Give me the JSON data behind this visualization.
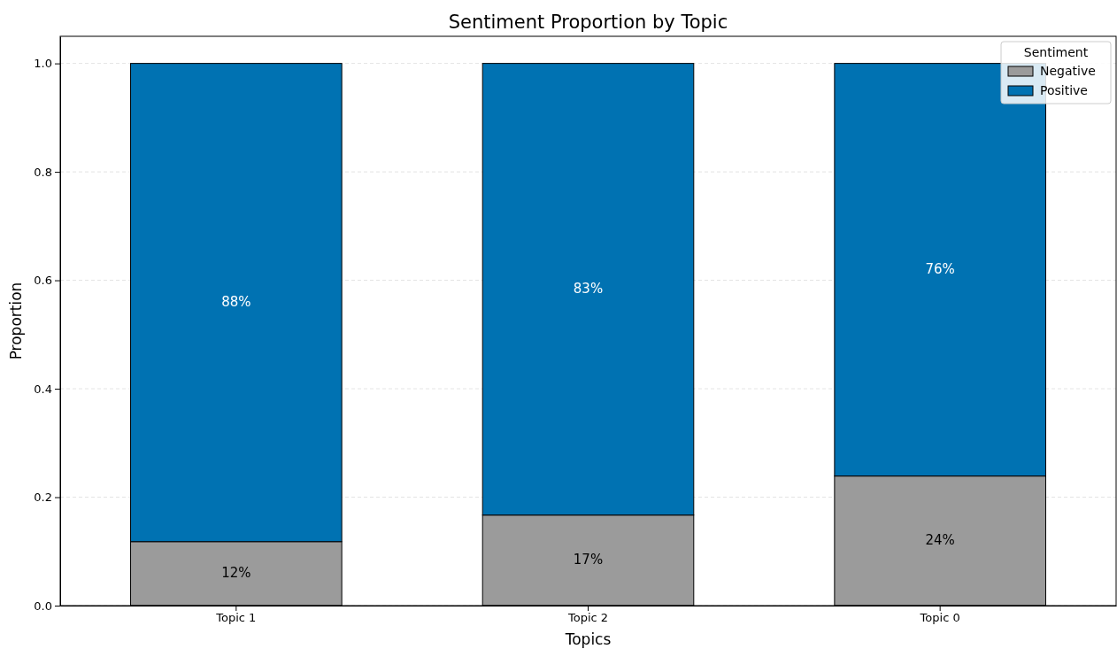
{
  "chart_data": {
    "type": "bar",
    "title": "Sentiment Proportion by Topic",
    "xlabel": "Topics",
    "ylabel": "Proportion",
    "legend_title": "Sentiment",
    "categories": [
      "Topic 1",
      "Topic 2",
      "Topic 0"
    ],
    "series": [
      {
        "name": "Negative",
        "color": "#9b9b9b",
        "values": [
          0.118,
          0.167,
          0.239
        ],
        "value_labels": [
          "12%",
          "17%",
          "24%"
        ]
      },
      {
        "name": "Positive",
        "color": "#0072b2",
        "values": [
          0.882,
          0.833,
          0.761
        ],
        "value_labels": [
          "88%",
          "83%",
          "76%"
        ]
      }
    ],
    "stacked": true,
    "ylim": [
      0,
      1.05
    ],
    "yticks": [
      {
        "value": 0,
        "label": "0.0"
      },
      {
        "value": 0.2,
        "label": "0.2"
      },
      {
        "value": 0.4,
        "label": "0.4"
      },
      {
        "value": 0.6,
        "label": "0.6"
      },
      {
        "value": 0.8,
        "label": "0.8"
      },
      {
        "value": 1,
        "label": "1.0"
      }
    ],
    "grid": "y",
    "legend": "top right"
  }
}
